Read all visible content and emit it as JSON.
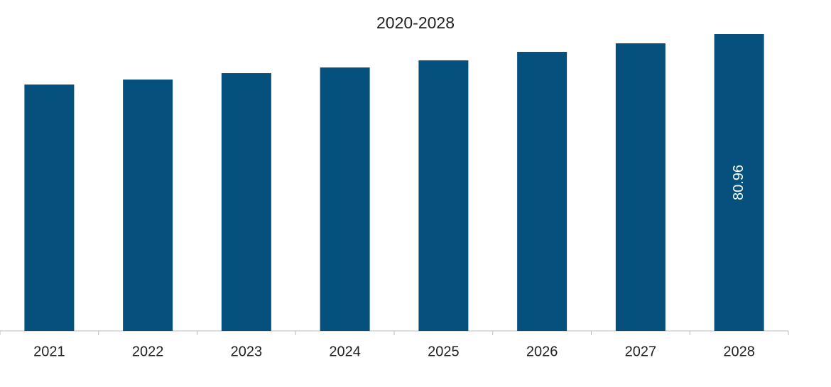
{
  "chart_data": {
    "type": "bar",
    "title": "2020-2028",
    "categories": [
      "2021",
      "2022",
      "2023",
      "2024",
      "2025",
      "2026",
      "2027",
      "2028"
    ],
    "values": [
      67.2,
      68.56,
      70.3,
      71.86,
      73.79,
      76.12,
      78.44,
      80.96
    ],
    "value_labels": [
      null,
      null,
      null,
      null,
      null,
      null,
      null,
      "80.96"
    ],
    "color": "#05507d"
  }
}
